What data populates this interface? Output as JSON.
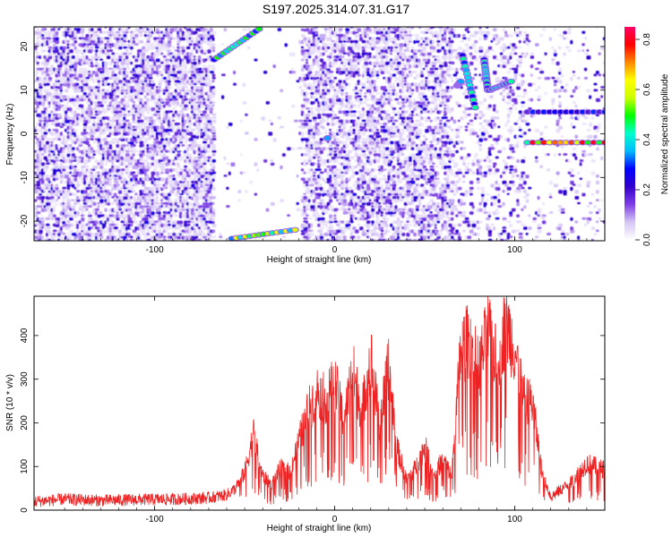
{
  "title": "S197.2025.314.07.31.G17",
  "chart_data": [
    {
      "type": "heatmap",
      "name": "spectrogram",
      "title": "S197.2025.314.07.31.G17",
      "xlabel": "Height of straight line (km)",
      "ylabel": "Frequency (Hz)",
      "xlim": [
        -167,
        150
      ],
      "ylim": [
        -24.5,
        24.5
      ],
      "xticks": [
        -100,
        0,
        100
      ],
      "xtick_labels": [
        "-100",
        "0",
        "100"
      ],
      "yticks": [
        20,
        10,
        0,
        -10,
        -20
      ],
      "ytick_labels": [
        "20",
        "10",
        "0",
        "-10",
        "-20"
      ],
      "colorbar": {
        "label": "Normalized spectral amplitude",
        "range": [
          0.0,
          0.85
        ],
        "ticks": [
          0.0,
          0.2,
          0.4,
          0.6,
          0.8
        ],
        "tick_labels": [
          "0.0",
          "0.2",
          "0.4",
          "0.6",
          "0.8"
        ],
        "colors": [
          "#ffffff",
          "#d6c5f5",
          "#7f3fe6",
          "#3300cc",
          "#0000ff",
          "#00bbff",
          "#00ffcc",
          "#00ff00",
          "#ccff00",
          "#ffff00",
          "#ff8800",
          "#ff0000",
          "#ff0066"
        ]
      },
      "features": [
        {
          "label": "upper-left streak",
          "x": [
            -67,
            -42
          ],
          "y": [
            17,
            24
          ],
          "amplitude": 0.5
        },
        {
          "label": "lower-left streak",
          "x": [
            -57,
            -22
          ],
          "y": [
            -24,
            -22
          ],
          "amplitude": 0.6
        },
        {
          "label": "center blob",
          "x": [
            -4,
            -4
          ],
          "y": [
            -1,
            -1
          ],
          "amplitude": 0.35
        },
        {
          "label": "near 70 km",
          "x": [
            68,
            70
          ],
          "y": [
            11,
            12
          ],
          "amplitude": 0.35
        },
        {
          "label": "descending trace",
          "x": [
            71,
            78
          ],
          "y": [
            18,
            6
          ],
          "amplitude": 0.45
        },
        {
          "label": "trace near 83 km",
          "x": [
            83,
            85
          ],
          "y": [
            17,
            10
          ],
          "amplitude": 0.45
        },
        {
          "label": "cluster near 90 km",
          "x": [
            86,
            98
          ],
          "y": [
            10,
            12
          ],
          "amplitude": 0.45
        },
        {
          "label": "line at 5 Hz",
          "x": [
            107,
            150
          ],
          "y": [
            5,
            5
          ],
          "amplitude": 0.3
        },
        {
          "label": "line at -2 Hz",
          "x": [
            107,
            150
          ],
          "y": [
            -2,
            -2
          ],
          "amplitude": 0.8
        }
      ]
    },
    {
      "type": "line",
      "name": "snr",
      "xlabel": "Height of straight line (km)",
      "ylabel": "SNR (10 * v/v)",
      "xlim": [
        -167,
        150
      ],
      "ylim": [
        0,
        490
      ],
      "xticks": [
        -100,
        0,
        100
      ],
      "xtick_labels": [
        "-100",
        "0",
        "100"
      ],
      "yticks": [
        0,
        100,
        200,
        300,
        400
      ],
      "ytick_labels": [
        "0",
        "100",
        "200",
        "300",
        "400"
      ],
      "color": "#ee2222",
      "series": [
        {
          "name": "SNR",
          "x": [
            -167,
            -150,
            -130,
            -110,
            -90,
            -70,
            -60,
            -55,
            -50,
            -45,
            -40,
            -35,
            -30,
            -25,
            -20,
            -15,
            -10,
            -5,
            0,
            5,
            10,
            15,
            20,
            25,
            30,
            35,
            40,
            45,
            50,
            55,
            60,
            65,
            70,
            75,
            80,
            85,
            90,
            95,
            100,
            105,
            110,
            115,
            120,
            130,
            140,
            150
          ],
          "y": [
            20,
            25,
            22,
            24,
            25,
            28,
            35,
            50,
            90,
            180,
            80,
            60,
            100,
            90,
            160,
            230,
            280,
            260,
            300,
            210,
            330,
            230,
            360,
            200,
            340,
            140,
            70,
            100,
            150,
            80,
            120,
            80,
            380,
            400,
            330,
            420,
            350,
            440,
            380,
            260,
            250,
            90,
            30,
            60,
            110,
            95
          ]
        }
      ]
    }
  ]
}
